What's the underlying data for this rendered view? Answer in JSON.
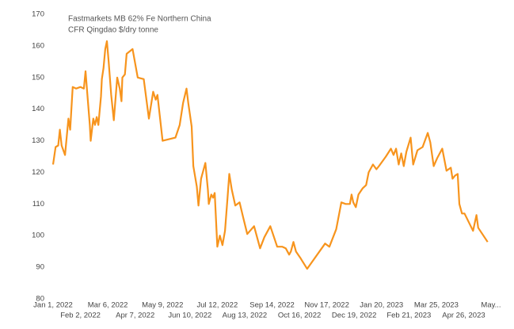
{
  "chart_data": {
    "type": "line",
    "title": [
      "Fastmarkets MB 62% Fe Northern China",
      "CFR Qingdao $/dry tonne"
    ],
    "x": [
      "2022-01-01",
      "2022-01-04",
      "2022-01-07",
      "2022-01-09",
      "2022-01-11",
      "2022-01-15",
      "2022-01-19",
      "2022-01-21",
      "2022-01-24",
      "2022-01-28",
      "2022-02-02",
      "2022-02-06",
      "2022-02-08",
      "2022-02-10",
      "2022-02-13",
      "2022-02-14",
      "2022-02-17",
      "2022-02-19",
      "2022-02-21",
      "2022-02-23",
      "2022-02-26",
      "2022-02-27",
      "2022-03-01",
      "2022-03-03",
      "2022-03-05",
      "2022-03-07",
      "2022-03-10",
      "2022-03-13",
      "2022-03-17",
      "2022-03-20",
      "2022-03-22",
      "2022-03-23",
      "2022-03-26",
      "2022-03-28",
      "2022-04-04",
      "2022-04-10",
      "2022-04-17",
      "2022-04-23",
      "2022-04-28",
      "2022-05-01",
      "2022-05-03",
      "2022-05-09",
      "2022-05-24",
      "2022-05-29",
      "2022-06-02",
      "2022-06-06",
      "2022-06-08",
      "2022-06-12",
      "2022-06-14",
      "2022-06-18",
      "2022-06-20",
      "2022-06-23",
      "2022-06-28",
      "2022-07-01",
      "2022-07-02",
      "2022-07-05",
      "2022-07-07",
      "2022-07-09",
      "2022-07-12",
      "2022-07-15",
      "2022-07-18",
      "2022-07-21",
      "2022-07-24",
      "2022-07-26",
      "2022-07-29",
      "2022-08-02",
      "2022-08-07",
      "2022-08-11",
      "2022-08-16",
      "2022-08-24",
      "2022-08-31",
      "2022-09-05",
      "2022-09-12",
      "2022-09-20",
      "2022-09-26",
      "2022-09-30",
      "2022-10-04",
      "2022-10-06",
      "2022-10-09",
      "2022-10-12",
      "2022-10-17",
      "2022-10-25",
      "2022-11-15",
      "2022-11-20",
      "2022-11-28",
      "2022-12-04",
      "2022-12-09",
      "2022-12-14",
      "2022-12-16",
      "2022-12-18",
      "2022-12-21",
      "2022-12-24",
      "2022-12-29",
      "2023-01-02",
      "2023-01-05",
      "2023-01-10",
      "2023-01-14",
      "2023-01-17",
      "2023-01-25",
      "2023-01-31",
      "2023-02-03",
      "2023-02-06",
      "2023-02-09",
      "2023-02-12",
      "2023-02-15",
      "2023-02-18",
      "2023-02-23",
      "2023-02-26",
      "2023-03-03",
      "2023-03-09",
      "2023-03-15",
      "2023-03-18",
      "2023-03-22",
      "2023-03-26",
      "2023-04-01",
      "2023-04-06",
      "2023-04-11",
      "2023-04-13",
      "2023-04-16",
      "2023-04-19",
      "2023-04-21",
      "2023-04-24",
      "2023-04-27",
      "2023-05-07",
      "2023-05-11",
      "2023-05-13",
      "2023-05-24"
    ],
    "values": [
      122.5,
      128,
      128.5,
      133.5,
      128.5,
      125.5,
      137,
      133.5,
      147,
      146.5,
      147,
      146.5,
      152,
      145,
      135,
      130,
      137,
      135,
      137.5,
      135,
      144,
      149.5,
      153,
      159,
      161.5,
      155,
      144.5,
      136.5,
      150,
      146.5,
      142.5,
      150,
      151,
      157.5,
      159,
      150,
      149.5,
      137,
      145.5,
      143,
      144.5,
      130,
      131,
      135,
      142,
      146.5,
      142,
      134.5,
      122,
      115.5,
      109.5,
      118,
      123,
      114.5,
      110,
      113,
      112,
      113.5,
      96.5,
      100,
      97,
      101.5,
      112,
      119.5,
      114.5,
      109.5,
      110.5,
      106,
      100.5,
      103,
      96,
      99.5,
      103,
      96.5,
      96.5,
      96,
      94,
      95,
      98,
      95,
      93,
      89.5,
      97.5,
      96.5,
      102,
      110.5,
      110,
      110,
      113,
      110.5,
      109,
      113,
      115,
      116,
      120,
      122.5,
      121,
      122,
      125,
      127.5,
      125.5,
      127.5,
      122.5,
      126,
      122,
      126.5,
      131,
      122.5,
      127,
      128,
      132.5,
      129.5,
      122,
      124.5,
      127.5,
      120.5,
      121.5,
      118,
      119,
      119.5,
      110,
      107,
      107,
      101.5,
      106.5,
      102.5,
      98
    ],
    "color": "#f7941d",
    "xlim": [
      "2022-01-01",
      "2023-05-28"
    ],
    "xticks": [
      {
        "value": "2022-01-01",
        "label": "Jan 1, 2022"
      },
      {
        "value": "2022-02-02",
        "label": "Feb 2, 2022"
      },
      {
        "value": "2022-03-06",
        "label": "Mar 6, 2022"
      },
      {
        "value": "2022-04-07",
        "label": "Apr 7, 2022"
      },
      {
        "value": "2022-05-09",
        "label": "May 9, 2022"
      },
      {
        "value": "2022-06-10",
        "label": "Jun 10, 2022"
      },
      {
        "value": "2022-07-12",
        "label": "Jul 12, 2022"
      },
      {
        "value": "2022-08-13",
        "label": "Aug 13, 2022"
      },
      {
        "value": "2022-09-14",
        "label": "Sep 14, 2022"
      },
      {
        "value": "2022-10-16",
        "label": "Oct 16, 2022"
      },
      {
        "value": "2022-11-17",
        "label": "Nov 17, 2022"
      },
      {
        "value": "2022-12-19",
        "label": "Dec 19, 2022"
      },
      {
        "value": "2023-01-20",
        "label": "Jan 20, 2023"
      },
      {
        "value": "2023-02-21",
        "label": "Feb 21, 2023"
      },
      {
        "value": "2023-03-25",
        "label": "Mar 25, 2023"
      },
      {
        "value": "2023-04-26",
        "label": "Apr 26, 2023"
      },
      {
        "value": "2023-05-28",
        "label": "May..."
      }
    ],
    "ylim": [
      80,
      170
    ],
    "yticks": [
      80,
      90,
      100,
      110,
      120,
      130,
      140,
      150,
      160,
      170
    ],
    "grid": false
  }
}
